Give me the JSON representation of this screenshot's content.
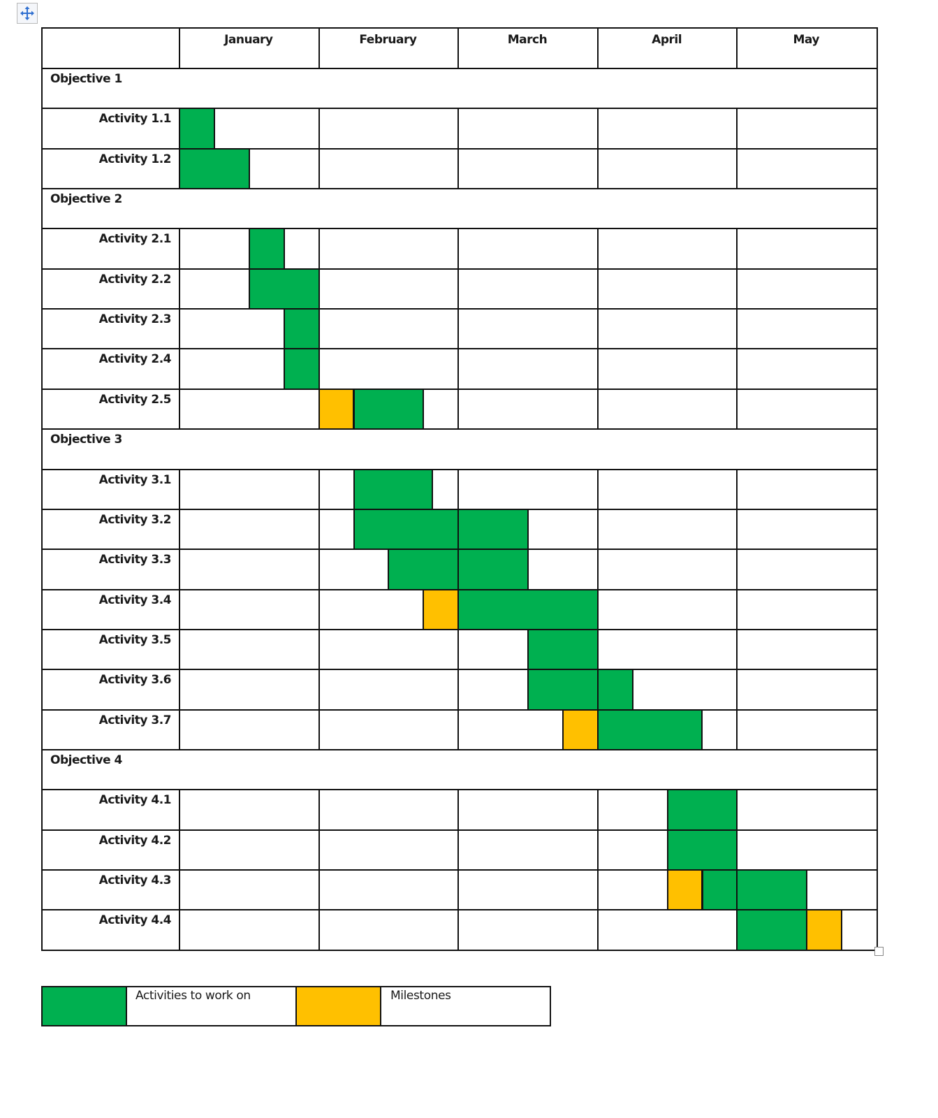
{
  "chart_data": {
    "type": "gantt",
    "title": "",
    "time_unit": "quarter-month (week)",
    "months": [
      "January",
      "February",
      "March",
      "April",
      "May"
    ],
    "colors": {
      "activity": "#00b050",
      "milestone": "#ffc000"
    },
    "legend": [
      {
        "label": "Activities to work on",
        "color": "#00b050"
      },
      {
        "label": "Milestones",
        "color": "#ffc000"
      }
    ],
    "rows": [
      {
        "type": "objective",
        "label": "Objective 1"
      },
      {
        "type": "activity",
        "label": "Activity 1.1",
        "bars": [
          {
            "kind": "activity",
            "start": 0,
            "end": 1
          }
        ]
      },
      {
        "type": "activity",
        "label": "Activity 1.2",
        "bars": [
          {
            "kind": "activity",
            "start": 0,
            "end": 2
          }
        ]
      },
      {
        "type": "objective",
        "label": "Objective 2"
      },
      {
        "type": "activity",
        "label": "Activity 2.1",
        "bars": [
          {
            "kind": "activity",
            "start": 2,
            "end": 3
          }
        ]
      },
      {
        "type": "activity",
        "label": "Activity 2.2",
        "bars": [
          {
            "kind": "activity",
            "start": 2,
            "end": 4
          }
        ]
      },
      {
        "type": "activity",
        "label": "Activity 2.3",
        "bars": [
          {
            "kind": "activity",
            "start": 3,
            "end": 4
          }
        ]
      },
      {
        "type": "activity",
        "label": "Activity 2.4",
        "bars": [
          {
            "kind": "activity",
            "start": 3,
            "end": 4
          }
        ]
      },
      {
        "type": "activity",
        "label": "Activity 2.5",
        "bars": [
          {
            "kind": "milestone",
            "start": 4,
            "end": 5
          },
          {
            "kind": "activity",
            "start": 5,
            "end": 7
          }
        ]
      },
      {
        "type": "objective",
        "label": "Objective 3"
      },
      {
        "type": "activity",
        "label": "Activity 3.1",
        "bars": [
          {
            "kind": "activity",
            "start": 5,
            "end": 7.25
          }
        ]
      },
      {
        "type": "activity",
        "label": "Activity 3.2",
        "bars": [
          {
            "kind": "activity",
            "start": 5,
            "end": 8
          },
          {
            "kind": "activity",
            "start": 8,
            "end": 10
          }
        ]
      },
      {
        "type": "activity",
        "label": "Activity 3.3",
        "bars": [
          {
            "kind": "activity",
            "start": 6,
            "end": 8
          },
          {
            "kind": "activity",
            "start": 8,
            "end": 10
          }
        ]
      },
      {
        "type": "activity",
        "label": "Activity 3.4",
        "bars": [
          {
            "kind": "milestone",
            "start": 7,
            "end": 8
          },
          {
            "kind": "activity",
            "start": 8,
            "end": 12
          }
        ]
      },
      {
        "type": "activity",
        "label": "Activity 3.5",
        "bars": [
          {
            "kind": "activity",
            "start": 10,
            "end": 12
          }
        ]
      },
      {
        "type": "activity",
        "label": "Activity 3.6",
        "bars": [
          {
            "kind": "activity",
            "start": 10,
            "end": 12
          },
          {
            "kind": "activity",
            "start": 12,
            "end": 13
          }
        ]
      },
      {
        "type": "activity",
        "label": "Activity 3.7",
        "bars": [
          {
            "kind": "milestone",
            "start": 11,
            "end": 12
          },
          {
            "kind": "activity",
            "start": 12,
            "end": 15
          }
        ]
      },
      {
        "type": "objective",
        "label": "Objective 4"
      },
      {
        "type": "activity",
        "label": "Activity 4.1",
        "bars": [
          {
            "kind": "activity",
            "start": 14,
            "end": 16
          }
        ]
      },
      {
        "type": "activity",
        "label": "Activity 4.2",
        "bars": [
          {
            "kind": "activity",
            "start": 14,
            "end": 16
          }
        ]
      },
      {
        "type": "activity",
        "label": "Activity 4.3",
        "bars": [
          {
            "kind": "milestone",
            "start": 14,
            "end": 15
          },
          {
            "kind": "activity",
            "start": 15,
            "end": 16
          },
          {
            "kind": "activity",
            "start": 16,
            "end": 18
          }
        ]
      },
      {
        "type": "activity",
        "label": "Activity 4.4",
        "bars": [
          {
            "kind": "activity",
            "start": 16,
            "end": 18
          },
          {
            "kind": "milestone",
            "start": 18,
            "end": 19
          }
        ]
      }
    ]
  },
  "legend": {
    "activity_label": "Activities to work on",
    "milestone_label": "Milestones"
  },
  "icons": {
    "move_handle": "move-arrows-icon",
    "resize_handle": "resize-square-icon"
  }
}
